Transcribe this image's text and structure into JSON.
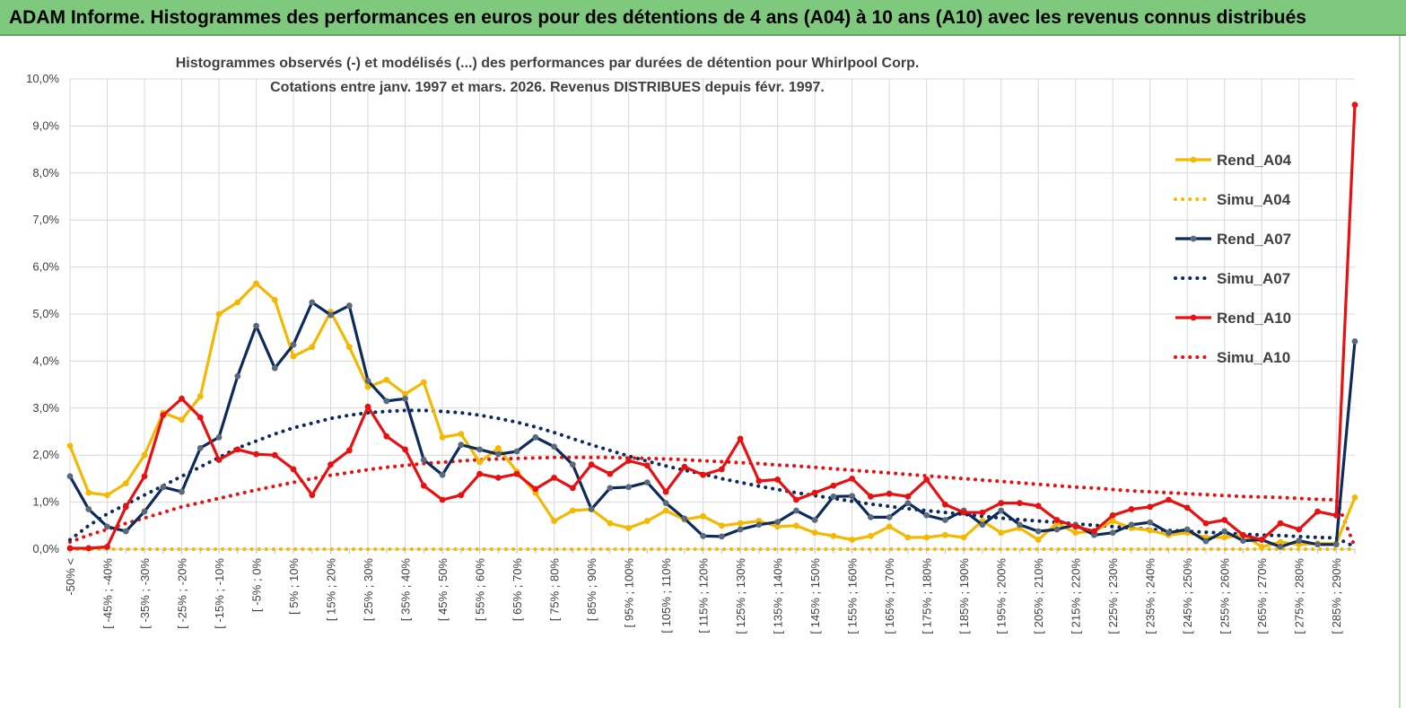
{
  "banner": {
    "title": "ADAM Informe. Histogrammes des performances en euros pour des détentions de 4 ans (A04) à 10 ans (A10) avec les revenus connus distribués"
  },
  "colors": {
    "a04": "#f5b800",
    "a07": "#0d2a5c",
    "a07_marker": "#5a6a7a",
    "a10": "#e81010",
    "banner_bg": "#7ec97e",
    "grid": "#d9d9d9"
  },
  "chart_data": {
    "type": "line",
    "title": [
      "Histogrammes observés (-) et modélisés (...) des performances par durées de détention pour Whirlpool Corp.",
      "Cotations entre janv. 1997 et mars. 2026. Revenus DISTRIBUES depuis févr. 1997."
    ],
    "ylim": [
      0,
      10
    ],
    "yticks": [
      "0,0%",
      "1,0%",
      "2,0%",
      "3,0%",
      "4,0%",
      "5,0%",
      "6,0%",
      "7,0%",
      "8,0%",
      "9,0%",
      "10,0%"
    ],
    "category_labels": [
      "-50% <",
      "[ -45% ; -40%",
      "[ -35% ; -30%",
      "[ -25% ; -20%",
      "[ -15% ; -10%",
      "[ -5% ; 0%",
      "[ 5% ; 10%",
      "[ 15% ; 20%",
      "[ 25% ; 30%",
      "[ 35% ; 40%",
      "[ 45% ; 50%",
      "[ 55% ; 60%",
      "[ 65% ; 70%",
      "[ 75% ; 80%",
      "[ 85% ; 90%",
      "[ 95% ; 100%",
      "[ 105% ; 110%",
      "[ 115% ; 120%",
      "[ 125% ; 130%",
      "[ 135% ; 140%",
      "[ 145% ; 150%",
      "[ 155% ; 160%",
      "[ 165% ; 170%",
      "[ 175% ; 180%",
      "[ 185% ; 190%",
      "[ 195% ; 200%",
      "[ 205% ; 210%",
      "[ 215% ; 220%",
      "[ 225% ; 230%",
      "[ 235% ; 240%",
      "[ 245% ; 250%",
      "[ 255% ; 260%",
      "[ 265% ; 270%",
      "[ 275% ; 280%",
      "[ 285% ; 290%"
    ],
    "num_points": 70,
    "legend": [
      "Rend_A04",
      "Simu_A04",
      "Rend_A07",
      "Simu_A07",
      "Rend_A10",
      "Simu_A10"
    ],
    "legend_position": "right",
    "series": [
      {
        "name": "Rend_A04",
        "style": "solid",
        "values": [
          2.2,
          1.2,
          1.15,
          1.4,
          2.0,
          2.9,
          2.75,
          3.25,
          5.0,
          5.25,
          5.65,
          5.3,
          4.1,
          4.3,
          5.05,
          4.3,
          3.45,
          3.6,
          3.3,
          3.55,
          2.38,
          2.45,
          1.85,
          2.15,
          1.65,
          1.2,
          0.6,
          0.82,
          0.85,
          0.55,
          0.45,
          0.6,
          0.82,
          0.63,
          0.7,
          0.5,
          0.55,
          0.6,
          0.48,
          0.5,
          0.35,
          0.28,
          0.2,
          0.28,
          0.48,
          0.25,
          0.25,
          0.3,
          0.25,
          0.6,
          0.35,
          0.45,
          0.2,
          0.55,
          0.35,
          0.38,
          0.6,
          0.45,
          0.4,
          0.3,
          0.35,
          0.25,
          0.25,
          0.3,
          0.05,
          0.15,
          0.1,
          0.12,
          0.12,
          1.1
        ]
      },
      {
        "name": "Simu_A04",
        "style": "dotted",
        "values": [
          0,
          0,
          0,
          0,
          0,
          0,
          0,
          0,
          0,
          0,
          0,
          0,
          0,
          0,
          0,
          0,
          0,
          0,
          0,
          0,
          0,
          0,
          0,
          0,
          0,
          0,
          0,
          0,
          0,
          0,
          0,
          0,
          0,
          0,
          0,
          0,
          0,
          0,
          0,
          0,
          0,
          0,
          0,
          0,
          0,
          0,
          0,
          0,
          0,
          0,
          0,
          0,
          0,
          0,
          0,
          0,
          0,
          0,
          0,
          0,
          0,
          0,
          0,
          0,
          0,
          0,
          0,
          0,
          0,
          0
        ]
      },
      {
        "name": "Rend_A07",
        "style": "solid",
        "values": [
          1.55,
          0.85,
          0.48,
          0.38,
          0.8,
          1.32,
          1.22,
          2.15,
          2.38,
          3.68,
          4.75,
          3.85,
          4.35,
          5.25,
          4.98,
          5.18,
          3.58,
          3.15,
          3.2,
          1.9,
          1.58,
          2.22,
          2.12,
          2.02,
          2.08,
          2.38,
          2.18,
          1.8,
          0.85,
          1.3,
          1.32,
          1.42,
          0.98,
          0.65,
          0.28,
          0.27,
          0.42,
          0.52,
          0.58,
          0.82,
          0.62,
          1.12,
          1.13,
          0.68,
          0.68,
          0.98,
          0.72,
          0.62,
          0.82,
          0.52,
          0.82,
          0.52,
          0.38,
          0.42,
          0.52,
          0.3,
          0.35,
          0.52,
          0.57,
          0.35,
          0.42,
          0.17,
          0.38,
          0.18,
          0.2,
          0.05,
          0.18,
          0.1,
          0.1,
          4.42
        ]
      },
      {
        "name": "Simu_A07",
        "style": "dotted",
        "values": [
          0.2,
          0.5,
          0.75,
          0.95,
          1.15,
          1.35,
          1.55,
          1.75,
          1.95,
          2.15,
          2.3,
          2.45,
          2.58,
          2.68,
          2.78,
          2.85,
          2.9,
          2.93,
          2.95,
          2.95,
          2.93,
          2.9,
          2.85,
          2.78,
          2.7,
          2.6,
          2.48,
          2.35,
          2.22,
          2.1,
          1.98,
          1.87,
          1.77,
          1.68,
          1.6,
          1.5,
          1.42,
          1.34,
          1.27,
          1.2,
          1.14,
          1.08,
          1.02,
          0.96,
          0.91,
          0.86,
          0.82,
          0.78,
          0.74,
          0.7,
          0.66,
          0.63,
          0.6,
          0.57,
          0.54,
          0.51,
          0.48,
          0.45,
          0.42,
          0.4,
          0.38,
          0.36,
          0.34,
          0.32,
          0.3,
          0.29,
          0.27,
          0.25,
          0.24,
          0.05
        ]
      },
      {
        "name": "Rend_A10",
        "style": "solid",
        "values": [
          0.02,
          0.02,
          0.05,
          0.9,
          1.55,
          2.85,
          3.2,
          2.8,
          1.9,
          2.12,
          2.02,
          2.0,
          1.7,
          1.15,
          1.8,
          2.1,
          3.03,
          2.4,
          2.12,
          1.35,
          1.05,
          1.15,
          1.6,
          1.52,
          1.6,
          1.28,
          1.52,
          1.3,
          1.8,
          1.6,
          1.88,
          1.78,
          1.22,
          1.75,
          1.58,
          1.7,
          2.35,
          1.45,
          1.48,
          1.05,
          1.2,
          1.35,
          1.5,
          1.12,
          1.18,
          1.12,
          1.48,
          0.95,
          0.78,
          0.78,
          0.98,
          0.98,
          0.92,
          0.62,
          0.48,
          0.38,
          0.72,
          0.85,
          0.9,
          1.05,
          0.88,
          0.55,
          0.62,
          0.3,
          0.2,
          0.55,
          0.42,
          0.8,
          0.72,
          9.45
        ]
      },
      {
        "name": "Simu_A10",
        "style": "dotted",
        "values": [
          0.15,
          0.3,
          0.42,
          0.55,
          0.66,
          0.78,
          0.9,
          0.99,
          1.08,
          1.17,
          1.26,
          1.34,
          1.42,
          1.5,
          1.57,
          1.63,
          1.69,
          1.74,
          1.78,
          1.82,
          1.85,
          1.88,
          1.9,
          1.92,
          1.93,
          1.94,
          1.95,
          1.95,
          1.95,
          1.95,
          1.94,
          1.93,
          1.92,
          1.9,
          1.88,
          1.86,
          1.84,
          1.82,
          1.79,
          1.77,
          1.74,
          1.71,
          1.68,
          1.65,
          1.62,
          1.59,
          1.56,
          1.53,
          1.5,
          1.47,
          1.44,
          1.41,
          1.38,
          1.35,
          1.32,
          1.3,
          1.27,
          1.24,
          1.22,
          1.2,
          1.18,
          1.16,
          1.14,
          1.12,
          1.11,
          1.1,
          1.08,
          1.06,
          1.05,
          0.05
        ]
      }
    ]
  }
}
